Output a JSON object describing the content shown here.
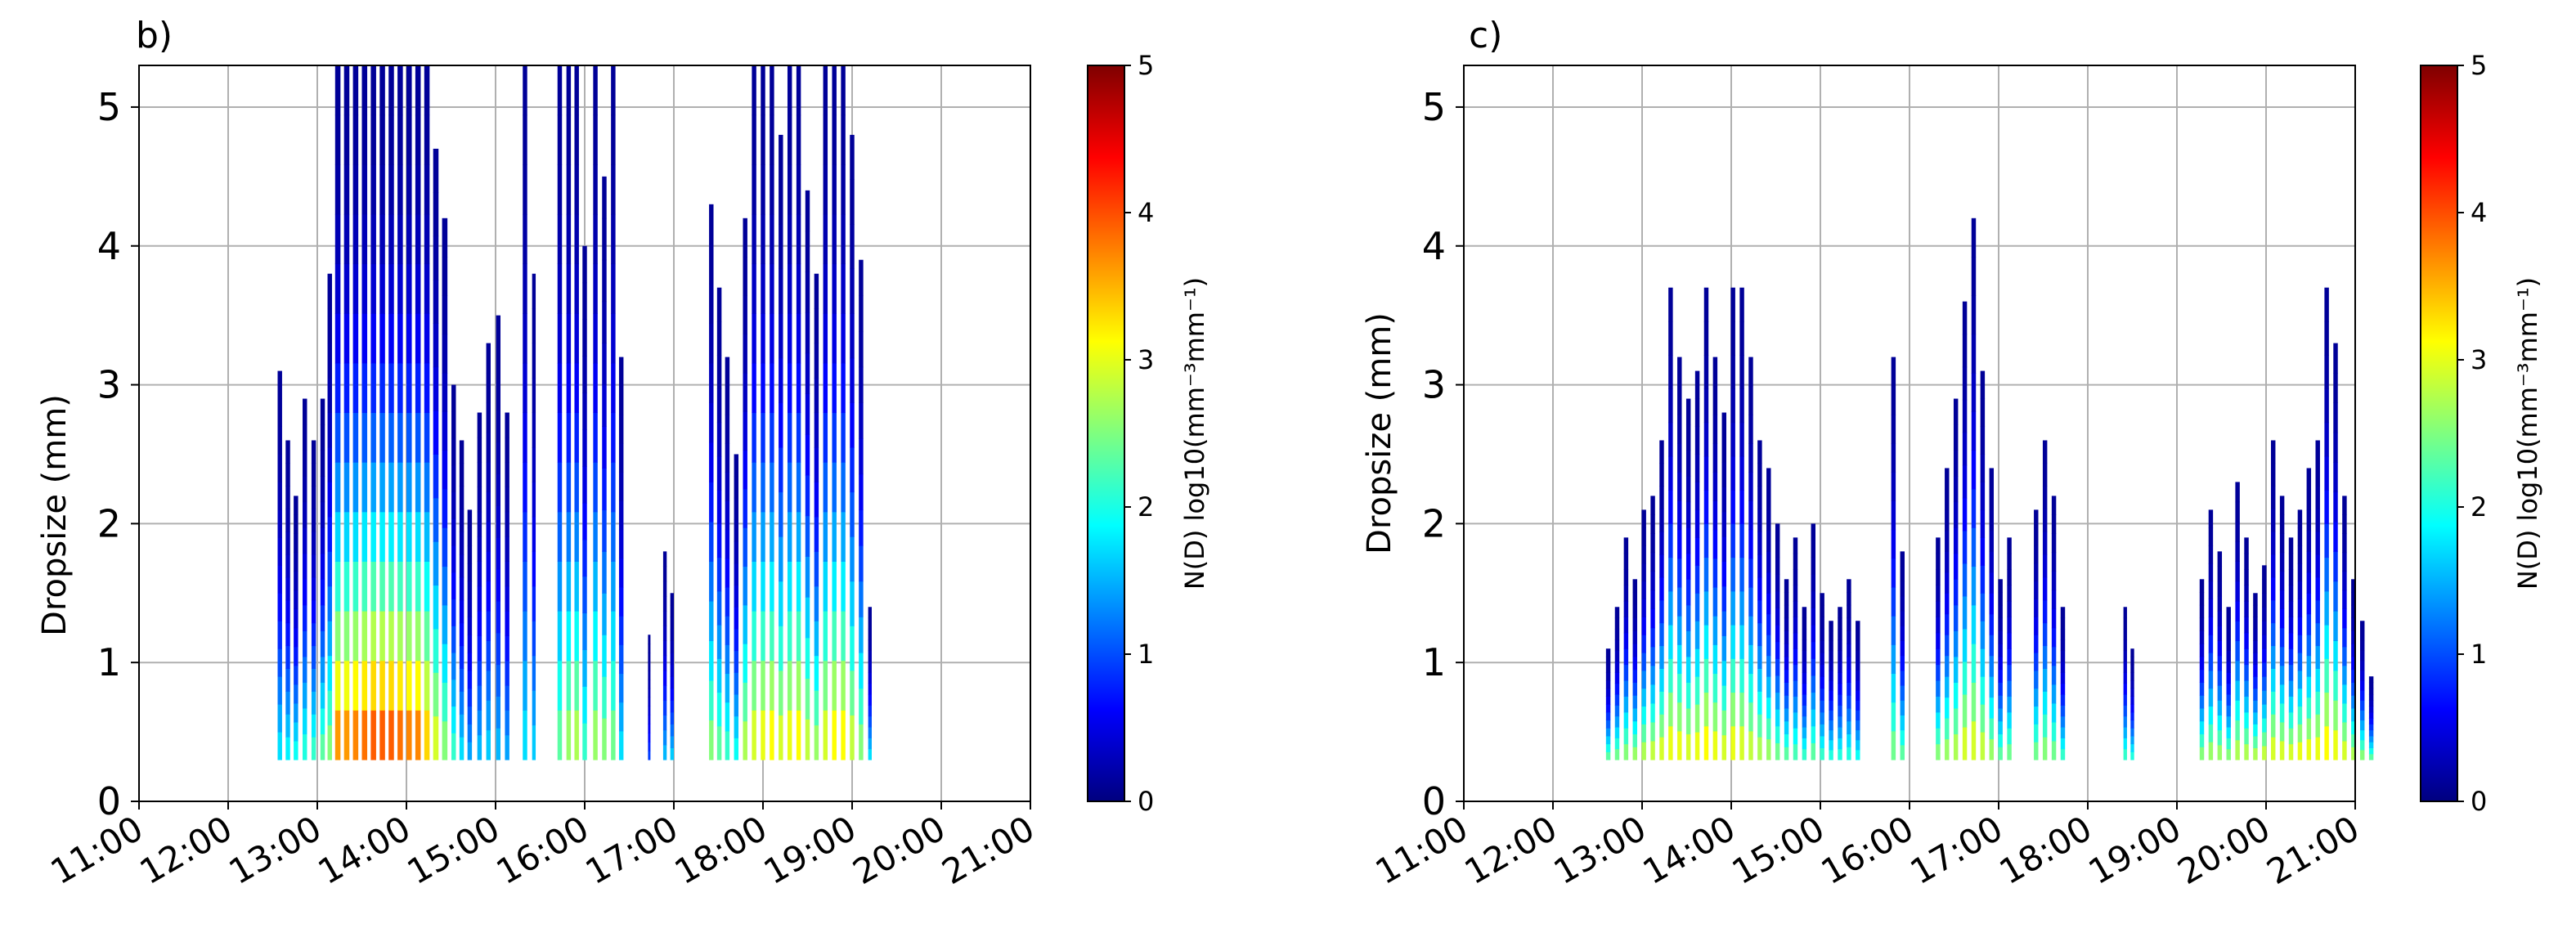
{
  "chart_data": [
    {
      "panel_label": "b)",
      "type": "heatmap",
      "xlabel": "",
      "ylabel": "Dropsize (mm)",
      "x_tick_labels": [
        "11:00",
        "12:00",
        "13:00",
        "14:00",
        "15:00",
        "16:00",
        "17:00",
        "18:00",
        "19:00",
        "20:00",
        "21:00"
      ],
      "x_range_hours": [
        11,
        21
      ],
      "y_ticks": [
        0,
        1,
        2,
        3,
        4,
        5
      ],
      "ylim": [
        0,
        5.3
      ],
      "grid": true,
      "colorbar": {
        "label": "N(D) log10(mm⁻³mm⁻¹)",
        "ticks": [
          0,
          1,
          2,
          3,
          4,
          5
        ],
        "range": [
          0,
          5
        ],
        "colormap": "jet"
      },
      "columns": [
        {
          "t": 12.58,
          "w": 0.05,
          "top": 3.1,
          "vmax": 1.6
        },
        {
          "t": 12.67,
          "w": 0.05,
          "top": 2.6,
          "vmax": 1.7
        },
        {
          "t": 12.76,
          "w": 0.05,
          "top": 2.2,
          "vmax": 1.8
        },
        {
          "t": 12.86,
          "w": 0.05,
          "top": 2.9,
          "vmax": 1.9
        },
        {
          "t": 12.96,
          "w": 0.05,
          "top": 2.6,
          "vmax": 2.0
        },
        {
          "t": 13.06,
          "w": 0.05,
          "top": 2.9,
          "vmax": 2.2
        },
        {
          "t": 13.14,
          "w": 0.05,
          "top": 3.8,
          "vmax": 2.4
        },
        {
          "t": 13.23,
          "w": 0.06,
          "top": 5.3,
          "vmax": 3.5
        },
        {
          "t": 13.33,
          "w": 0.06,
          "top": 5.3,
          "vmax": 3.5
        },
        {
          "t": 13.43,
          "w": 0.06,
          "top": 5.3,
          "vmax": 3.6
        },
        {
          "t": 13.53,
          "w": 0.06,
          "top": 5.3,
          "vmax": 3.7
        },
        {
          "t": 13.63,
          "w": 0.06,
          "top": 5.3,
          "vmax": 3.8
        },
        {
          "t": 13.73,
          "w": 0.06,
          "top": 5.3,
          "vmax": 3.8
        },
        {
          "t": 13.83,
          "w": 0.06,
          "top": 5.3,
          "vmax": 3.8
        },
        {
          "t": 13.93,
          "w": 0.06,
          "top": 5.3,
          "vmax": 3.7
        },
        {
          "t": 14.03,
          "w": 0.06,
          "top": 5.3,
          "vmax": 3.6
        },
        {
          "t": 14.13,
          "w": 0.06,
          "top": 5.3,
          "vmax": 3.6
        },
        {
          "t": 14.23,
          "w": 0.06,
          "top": 5.3,
          "vmax": 3.2
        },
        {
          "t": 14.33,
          "w": 0.06,
          "top": 4.7,
          "vmax": 2.8
        },
        {
          "t": 14.43,
          "w": 0.06,
          "top": 4.2,
          "vmax": 2.4
        },
        {
          "t": 14.53,
          "w": 0.05,
          "top": 3.0,
          "vmax": 2.0
        },
        {
          "t": 14.62,
          "w": 0.05,
          "top": 2.6,
          "vmax": 1.6
        },
        {
          "t": 14.71,
          "w": 0.05,
          "top": 2.1,
          "vmax": 1.3
        },
        {
          "t": 14.82,
          "w": 0.05,
          "top": 2.8,
          "vmax": 1.4
        },
        {
          "t": 14.92,
          "w": 0.05,
          "top": 3.3,
          "vmax": 1.5
        },
        {
          "t": 15.03,
          "w": 0.05,
          "top": 3.5,
          "vmax": 1.4
        },
        {
          "t": 15.13,
          "w": 0.05,
          "top": 2.8,
          "vmax": 1.3
        },
        {
          "t": 15.33,
          "w": 0.05,
          "top": 5.3,
          "vmax": 1.6
        },
        {
          "t": 15.43,
          "w": 0.04,
          "top": 3.8,
          "vmax": 1.5
        },
        {
          "t": 15.72,
          "w": 0.05,
          "top": 5.3,
          "vmax": 2.2
        },
        {
          "t": 15.82,
          "w": 0.05,
          "top": 5.3,
          "vmax": 2.5
        },
        {
          "t": 15.91,
          "w": 0.05,
          "top": 5.3,
          "vmax": 2.6
        },
        {
          "t": 16.0,
          "w": 0.05,
          "top": 4.0,
          "vmax": 2.0
        },
        {
          "t": 16.12,
          "w": 0.05,
          "top": 5.3,
          "vmax": 2.5
        },
        {
          "t": 16.22,
          "w": 0.05,
          "top": 4.5,
          "vmax": 2.4
        },
        {
          "t": 16.32,
          "w": 0.05,
          "top": 5.3,
          "vmax": 2.3
        },
        {
          "t": 16.41,
          "w": 0.05,
          "top": 3.2,
          "vmax": 1.6
        },
        {
          "t": 16.72,
          "w": 0.02,
          "top": 1.2,
          "vmax": 0.8
        },
        {
          "t": 16.9,
          "w": 0.04,
          "top": 1.8,
          "vmax": 1.4
        },
        {
          "t": 16.98,
          "w": 0.04,
          "top": 1.5,
          "vmax": 1.5
        },
        {
          "t": 17.42,
          "w": 0.05,
          "top": 4.3,
          "vmax": 2.4
        },
        {
          "t": 17.51,
          "w": 0.05,
          "top": 3.7,
          "vmax": 2.2
        },
        {
          "t": 17.6,
          "w": 0.05,
          "top": 3.2,
          "vmax": 2.0
        },
        {
          "t": 17.7,
          "w": 0.05,
          "top": 2.5,
          "vmax": 1.8
        },
        {
          "t": 17.8,
          "w": 0.05,
          "top": 4.2,
          "vmax": 2.6
        },
        {
          "t": 17.9,
          "w": 0.05,
          "top": 5.3,
          "vmax": 2.8
        },
        {
          "t": 18.0,
          "w": 0.05,
          "top": 5.3,
          "vmax": 2.9
        },
        {
          "t": 18.1,
          "w": 0.05,
          "top": 5.3,
          "vmax": 3.0
        },
        {
          "t": 18.2,
          "w": 0.05,
          "top": 4.8,
          "vmax": 2.8
        },
        {
          "t": 18.3,
          "w": 0.05,
          "top": 5.3,
          "vmax": 2.9
        },
        {
          "t": 18.4,
          "w": 0.05,
          "top": 5.3,
          "vmax": 3.0
        },
        {
          "t": 18.5,
          "w": 0.05,
          "top": 4.4,
          "vmax": 2.7
        },
        {
          "t": 18.6,
          "w": 0.05,
          "top": 3.8,
          "vmax": 2.5
        },
        {
          "t": 18.7,
          "w": 0.05,
          "top": 5.3,
          "vmax": 2.8
        },
        {
          "t": 18.8,
          "w": 0.05,
          "top": 5.3,
          "vmax": 3.0
        },
        {
          "t": 18.9,
          "w": 0.05,
          "top": 5.3,
          "vmax": 3.0
        },
        {
          "t": 19.0,
          "w": 0.05,
          "top": 4.8,
          "vmax": 2.7
        },
        {
          "t": 19.1,
          "w": 0.05,
          "top": 3.9,
          "vmax": 2.4
        },
        {
          "t": 19.2,
          "w": 0.04,
          "top": 1.4,
          "vmax": 1.6
        }
      ]
    },
    {
      "panel_label": "c)",
      "type": "heatmap",
      "xlabel": "",
      "ylabel": "Dropsize (mm)",
      "x_tick_labels": [
        "11:00",
        "12:00",
        "13:00",
        "14:00",
        "15:00",
        "16:00",
        "17:00",
        "18:00",
        "19:00",
        "20:00",
        "21:00"
      ],
      "x_range_hours": [
        11,
        21
      ],
      "y_ticks": [
        0,
        1,
        2,
        3,
        4,
        5
      ],
      "ylim": [
        0,
        5.3
      ],
      "grid": true,
      "colorbar": {
        "label": "N(D) log10(mm⁻³mm⁻¹)",
        "ticks": [
          0,
          1,
          2,
          3,
          4,
          5
        ],
        "range": [
          0,
          5
        ],
        "colormap": "jet"
      },
      "columns": [
        {
          "t": 12.62,
          "w": 0.05,
          "top": 1.1,
          "vmax": 2.2
        },
        {
          "t": 12.72,
          "w": 0.05,
          "top": 1.4,
          "vmax": 2.3
        },
        {
          "t": 12.82,
          "w": 0.05,
          "top": 1.9,
          "vmax": 2.4
        },
        {
          "t": 12.92,
          "w": 0.05,
          "top": 1.6,
          "vmax": 2.5
        },
        {
          "t": 13.02,
          "w": 0.05,
          "top": 2.1,
          "vmax": 2.6
        },
        {
          "t": 13.12,
          "w": 0.05,
          "top": 2.2,
          "vmax": 2.7
        },
        {
          "t": 13.22,
          "w": 0.05,
          "top": 2.6,
          "vmax": 2.8
        },
        {
          "t": 13.32,
          "w": 0.05,
          "top": 3.7,
          "vmax": 2.9
        },
        {
          "t": 13.42,
          "w": 0.05,
          "top": 3.2,
          "vmax": 2.9
        },
        {
          "t": 13.52,
          "w": 0.05,
          "top": 2.9,
          "vmax": 2.8
        },
        {
          "t": 13.62,
          "w": 0.05,
          "top": 3.1,
          "vmax": 2.9
        },
        {
          "t": 13.72,
          "w": 0.05,
          "top": 3.7,
          "vmax": 3.0
        },
        {
          "t": 13.82,
          "w": 0.05,
          "top": 3.2,
          "vmax": 2.9
        },
        {
          "t": 13.92,
          "w": 0.05,
          "top": 2.8,
          "vmax": 2.8
        },
        {
          "t": 14.02,
          "w": 0.05,
          "top": 3.7,
          "vmax": 2.9
        },
        {
          "t": 14.12,
          "w": 0.05,
          "top": 3.7,
          "vmax": 2.8
        },
        {
          "t": 14.22,
          "w": 0.05,
          "top": 3.2,
          "vmax": 2.7
        },
        {
          "t": 14.32,
          "w": 0.05,
          "top": 2.6,
          "vmax": 2.6
        },
        {
          "t": 14.42,
          "w": 0.05,
          "top": 2.4,
          "vmax": 2.5
        },
        {
          "t": 14.52,
          "w": 0.05,
          "top": 2.0,
          "vmax": 2.3
        },
        {
          "t": 14.62,
          "w": 0.05,
          "top": 1.6,
          "vmax": 2.2
        },
        {
          "t": 14.72,
          "w": 0.05,
          "top": 1.9,
          "vmax": 2.1
        },
        {
          "t": 14.82,
          "w": 0.05,
          "top": 1.4,
          "vmax": 2.0
        },
        {
          "t": 14.92,
          "w": 0.05,
          "top": 2.0,
          "vmax": 2.2
        },
        {
          "t": 15.02,
          "w": 0.05,
          "top": 1.5,
          "vmax": 2.0
        },
        {
          "t": 15.12,
          "w": 0.05,
          "top": 1.3,
          "vmax": 1.9
        },
        {
          "t": 15.22,
          "w": 0.05,
          "top": 1.4,
          "vmax": 1.9
        },
        {
          "t": 15.32,
          "w": 0.05,
          "top": 1.6,
          "vmax": 1.9
        },
        {
          "t": 15.42,
          "w": 0.05,
          "top": 1.3,
          "vmax": 1.8
        },
        {
          "t": 15.82,
          "w": 0.05,
          "top": 3.2,
          "vmax": 2.3
        },
        {
          "t": 15.92,
          "w": 0.05,
          "top": 1.8,
          "vmax": 2.2
        },
        {
          "t": 16.32,
          "w": 0.05,
          "top": 1.9,
          "vmax": 2.4
        },
        {
          "t": 16.42,
          "w": 0.05,
          "top": 2.4,
          "vmax": 2.5
        },
        {
          "t": 16.52,
          "w": 0.05,
          "top": 2.9,
          "vmax": 2.6
        },
        {
          "t": 16.62,
          "w": 0.05,
          "top": 3.6,
          "vmax": 2.8
        },
        {
          "t": 16.72,
          "w": 0.05,
          "top": 4.2,
          "vmax": 2.8
        },
        {
          "t": 16.82,
          "w": 0.05,
          "top": 3.1,
          "vmax": 2.7
        },
        {
          "t": 16.92,
          "w": 0.05,
          "top": 2.4,
          "vmax": 2.5
        },
        {
          "t": 17.02,
          "w": 0.05,
          "top": 1.6,
          "vmax": 2.2
        },
        {
          "t": 17.12,
          "w": 0.05,
          "top": 1.9,
          "vmax": 2.3
        },
        {
          "t": 17.42,
          "w": 0.05,
          "top": 2.1,
          "vmax": 2.3
        },
        {
          "t": 17.52,
          "w": 0.05,
          "top": 2.6,
          "vmax": 2.4
        },
        {
          "t": 17.62,
          "w": 0.05,
          "top": 2.2,
          "vmax": 2.3
        },
        {
          "t": 17.72,
          "w": 0.05,
          "top": 1.4,
          "vmax": 2.0
        },
        {
          "t": 18.42,
          "w": 0.04,
          "top": 1.4,
          "vmax": 2.0
        },
        {
          "t": 18.5,
          "w": 0.04,
          "top": 1.1,
          "vmax": 1.9
        },
        {
          "t": 19.28,
          "w": 0.05,
          "top": 1.6,
          "vmax": 2.4
        },
        {
          "t": 19.38,
          "w": 0.05,
          "top": 2.1,
          "vmax": 2.5
        },
        {
          "t": 19.48,
          "w": 0.05,
          "top": 1.8,
          "vmax": 2.5
        },
        {
          "t": 19.58,
          "w": 0.05,
          "top": 1.4,
          "vmax": 2.4
        },
        {
          "t": 19.68,
          "w": 0.05,
          "top": 2.3,
          "vmax": 2.6
        },
        {
          "t": 19.78,
          "w": 0.05,
          "top": 1.9,
          "vmax": 2.6
        },
        {
          "t": 19.88,
          "w": 0.05,
          "top": 1.5,
          "vmax": 2.6
        },
        {
          "t": 19.98,
          "w": 0.05,
          "top": 1.7,
          "vmax": 2.7
        },
        {
          "t": 20.08,
          "w": 0.05,
          "top": 2.6,
          "vmax": 2.8
        },
        {
          "t": 20.18,
          "w": 0.05,
          "top": 2.2,
          "vmax": 2.8
        },
        {
          "t": 20.28,
          "w": 0.05,
          "top": 1.9,
          "vmax": 2.8
        },
        {
          "t": 20.38,
          "w": 0.05,
          "top": 2.1,
          "vmax": 2.9
        },
        {
          "t": 20.48,
          "w": 0.05,
          "top": 2.4,
          "vmax": 2.9
        },
        {
          "t": 20.58,
          "w": 0.05,
          "top": 2.6,
          "vmax": 2.9
        },
        {
          "t": 20.68,
          "w": 0.05,
          "top": 3.7,
          "vmax": 3.0
        },
        {
          "t": 20.78,
          "w": 0.05,
          "top": 3.3,
          "vmax": 2.9
        },
        {
          "t": 20.88,
          "w": 0.05,
          "top": 2.2,
          "vmax": 2.8
        },
        {
          "t": 20.98,
          "w": 0.05,
          "top": 1.6,
          "vmax": 2.6
        },
        {
          "t": 21.08,
          "w": 0.05,
          "top": 1.3,
          "vmax": 2.4
        },
        {
          "t": 21.18,
          "w": 0.05,
          "top": 0.9,
          "vmax": 2.2
        }
      ]
    }
  ]
}
